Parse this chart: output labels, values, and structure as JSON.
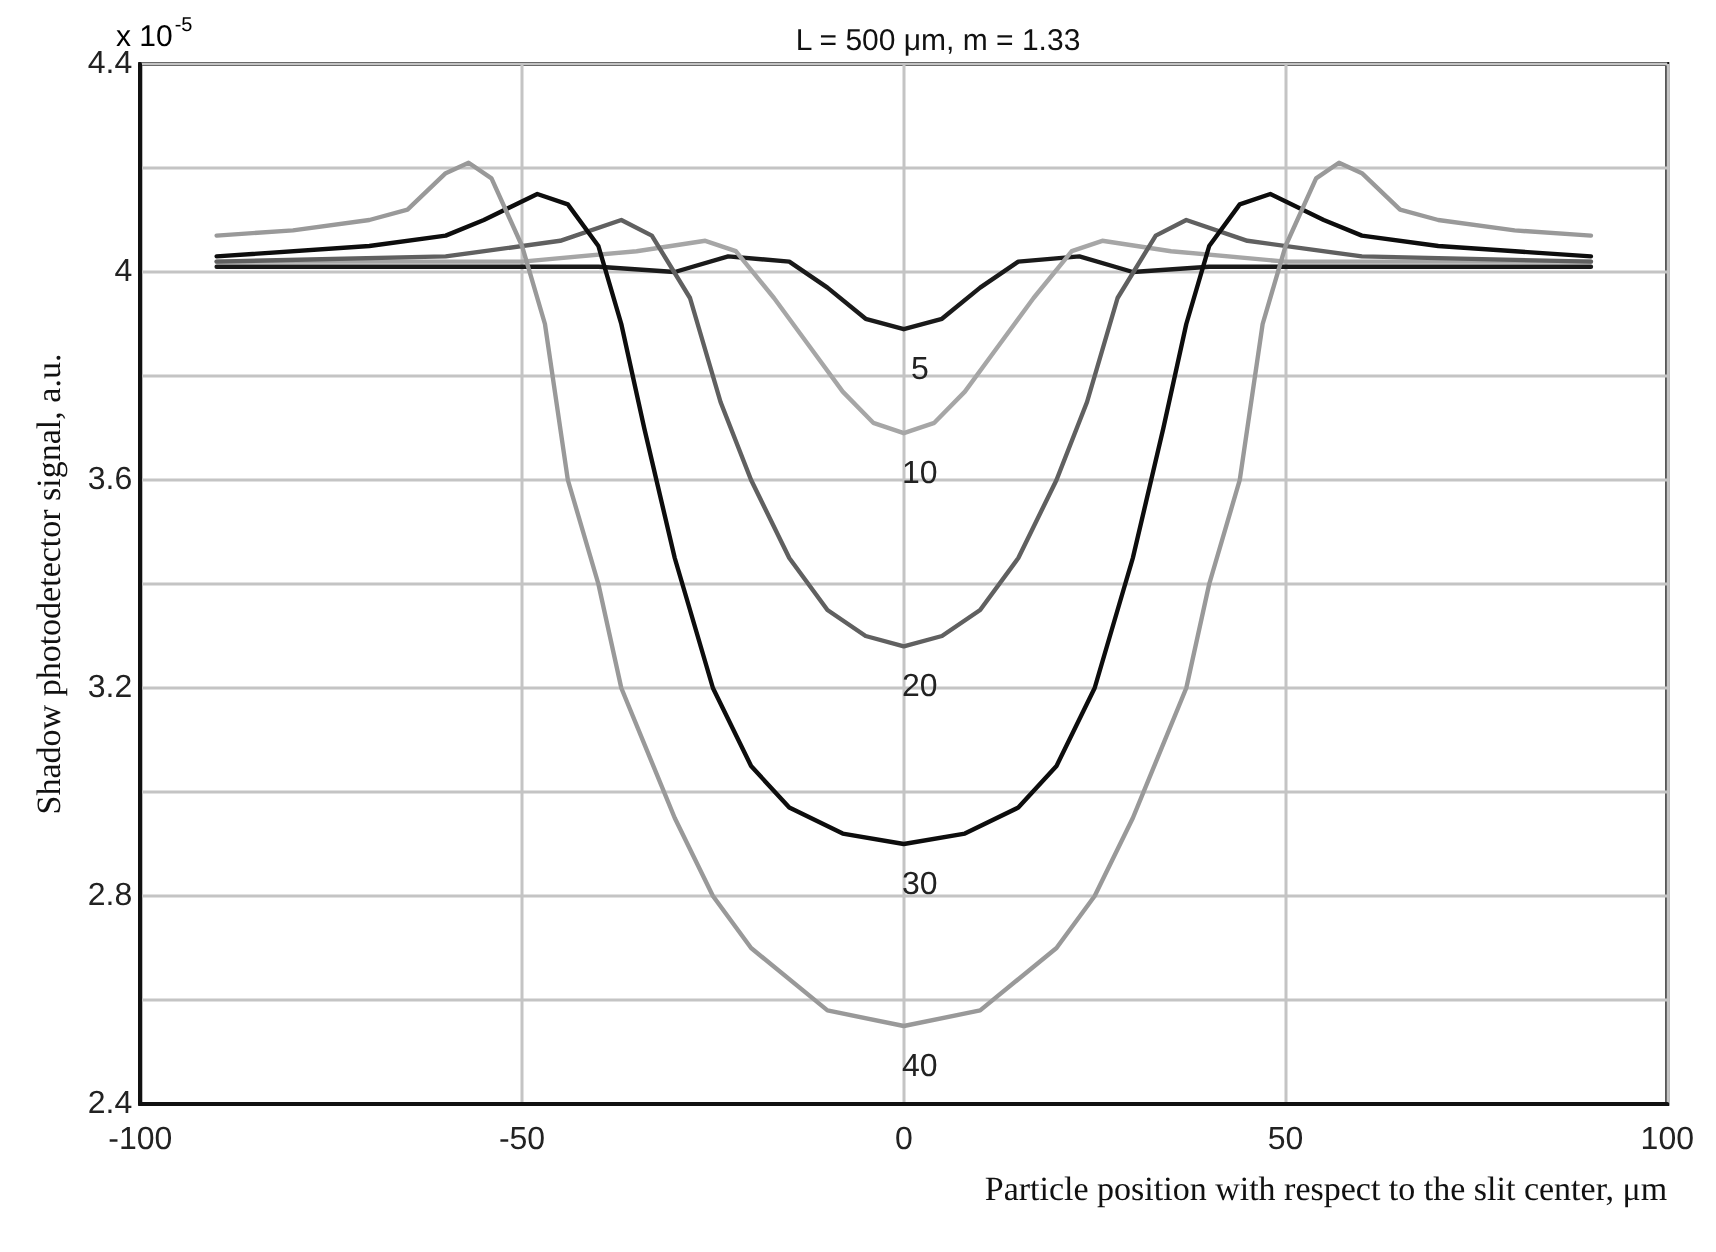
{
  "chart_data": {
    "type": "line",
    "title": "L = 500 μm, m = 1.33",
    "xlabel": "Particle position with respect to the slit center, μm",
    "ylabel": "Shadow photodetector signal, a.u.",
    "annotations": [
      "x 10$^{-5}$"
    ],
    "xlim": [
      -100,
      100
    ],
    "xticks": [
      -100,
      -50,
      0,
      50,
      100
    ],
    "ylim": [
      2.4,
      4.4
    ],
    "yticks": [
      2.4,
      {
        "value": 2.6,
        "label": null
      },
      2.8,
      {
        "value": 3.0,
        "label": null
      },
      3.2,
      {
        "value": 3.4,
        "label": null
      },
      3.6,
      {
        "value": 3.8,
        "label": null
      },
      4,
      {
        "value": 4.2,
        "label": null
      },
      4.4
    ],
    "grid": true,
    "legend": false,
    "marker": "none",
    "line_style": "solid",
    "series": [
      {
        "name": "5",
        "color": "#1a1a1a",
        "x": [
          -90,
          -60,
          -40,
          -30,
          -23,
          -15,
          -10,
          -5,
          0,
          5,
          10,
          15,
          23,
          30,
          40,
          60,
          90
        ],
        "values": [
          4.01,
          4.01,
          4.01,
          4.0,
          4.03,
          4.02,
          3.97,
          3.91,
          3.89,
          3.91,
          3.97,
          4.02,
          4.03,
          4.0,
          4.01,
          4.01,
          4.01
        ]
      },
      {
        "name": "10",
        "color": "#a6a6a6",
        "x": [
          -90,
          -50,
          -35,
          -26,
          -22,
          -17,
          -12,
          -8,
          -4,
          0,
          4,
          8,
          12,
          17,
          22,
          26,
          35,
          50,
          90
        ],
        "values": [
          4.02,
          4.02,
          4.04,
          4.06,
          4.04,
          3.95,
          3.85,
          3.77,
          3.71,
          3.69,
          3.71,
          3.77,
          3.85,
          3.95,
          4.04,
          4.06,
          4.04,
          4.02,
          4.02
        ]
      },
      {
        "name": "20",
        "color": "#606060",
        "x": [
          -90,
          -60,
          -45,
          -37,
          -33,
          -28,
          -24,
          -20,
          -15,
          -10,
          -5,
          0,
          5,
          10,
          15,
          20,
          24,
          28,
          33,
          37,
          45,
          60,
          90
        ],
        "values": [
          4.02,
          4.03,
          4.06,
          4.1,
          4.07,
          3.95,
          3.75,
          3.6,
          3.45,
          3.35,
          3.3,
          3.28,
          3.3,
          3.35,
          3.45,
          3.6,
          3.75,
          3.95,
          4.07,
          4.1,
          4.06,
          4.03,
          4.02
        ]
      },
      {
        "name": "30",
        "color": "#0d0d0d",
        "x": [
          -90,
          -70,
          -60,
          -55,
          -48,
          -44,
          -40,
          -37,
          -34,
          -30,
          -25,
          -20,
          -15,
          -8,
          0,
          8,
          15,
          20,
          25,
          30,
          34,
          37,
          40,
          44,
          48,
          55,
          60,
          70,
          90
        ],
        "values": [
          4.03,
          4.05,
          4.07,
          4.1,
          4.15,
          4.13,
          4.05,
          3.9,
          3.7,
          3.45,
          3.2,
          3.05,
          2.97,
          2.92,
          2.9,
          2.92,
          2.97,
          3.05,
          3.2,
          3.45,
          3.7,
          3.9,
          4.05,
          4.13,
          4.15,
          4.1,
          4.07,
          4.05,
          4.03
        ]
      },
      {
        "name": "40",
        "color": "#999999",
        "x": [
          -90,
          -80,
          -70,
          -65,
          -60,
          -57,
          -54,
          -50,
          -47,
          -44,
          -40,
          -37,
          -30,
          -25,
          -20,
          -10,
          0,
          10,
          20,
          25,
          30,
          37,
          40,
          44,
          47,
          50,
          54,
          57,
          60,
          65,
          70,
          80,
          90
        ],
        "values": [
          4.07,
          4.08,
          4.1,
          4.12,
          4.19,
          4.21,
          4.18,
          4.05,
          3.9,
          3.6,
          3.4,
          3.2,
          2.95,
          2.8,
          2.7,
          2.58,
          2.55,
          2.58,
          2.7,
          2.8,
          2.95,
          3.2,
          3.4,
          3.6,
          3.9,
          4.05,
          4.18,
          4.21,
          4.19,
          4.12,
          4.1,
          4.08,
          4.07
        ]
      }
    ]
  }
}
